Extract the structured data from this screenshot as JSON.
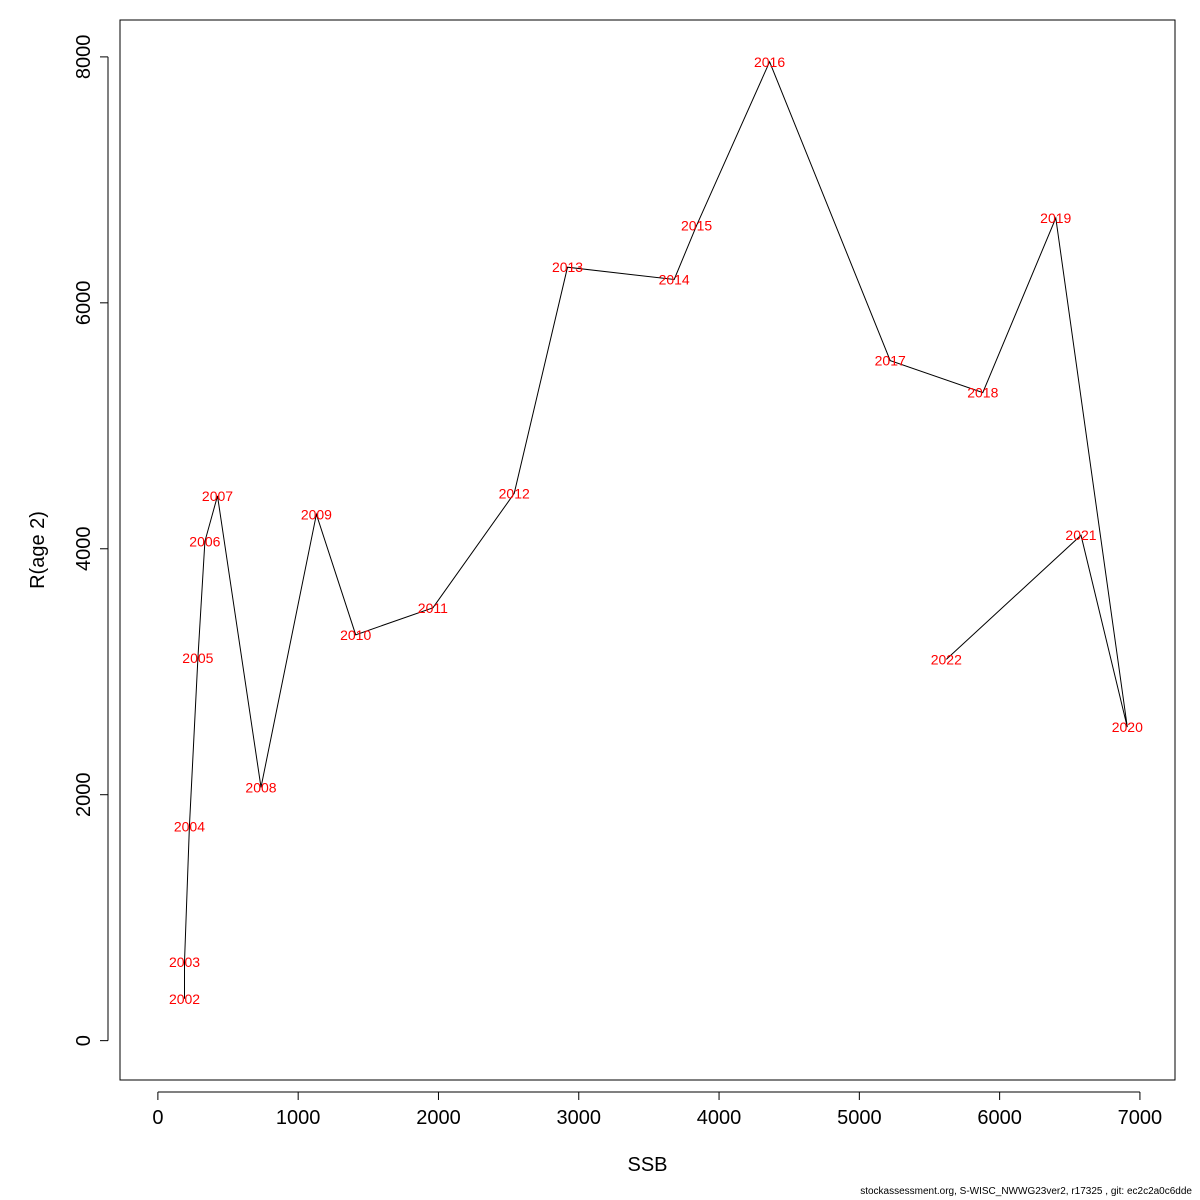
{
  "chart_data": {
    "type": "line",
    "title": "",
    "xlabel": "SSB",
    "ylabel": "R(age 2)",
    "xlim": [
      -270,
      7250
    ],
    "ylim": [
      -320,
      8300
    ],
    "xticks": [
      0,
      1000,
      2000,
      3000,
      4000,
      5000,
      6000,
      7000
    ],
    "yticks": [
      0,
      2000,
      4000,
      6000,
      8000
    ],
    "grid": false,
    "legend": "none",
    "line_color": "#000000",
    "label_color": "#ff0000",
    "series": [
      {
        "points": [
          {
            "label": "2002",
            "x": 190,
            "y": 340
          },
          {
            "label": "2003",
            "x": 190,
            "y": 640
          },
          {
            "label": "2004",
            "x": 225,
            "y": 1740
          },
          {
            "label": "2005",
            "x": 285,
            "y": 3110
          },
          {
            "label": "2006",
            "x": 335,
            "y": 4060
          },
          {
            "label": "2007",
            "x": 425,
            "y": 4430
          },
          {
            "label": "2008",
            "x": 735,
            "y": 2060
          },
          {
            "label": "2009",
            "x": 1130,
            "y": 4280
          },
          {
            "label": "2010",
            "x": 1410,
            "y": 3300
          },
          {
            "label": "2011",
            "x": 1960,
            "y": 3520
          },
          {
            "label": "2012",
            "x": 2540,
            "y": 4450
          },
          {
            "label": "2013",
            "x": 2920,
            "y": 6290
          },
          {
            "label": "2014",
            "x": 3680,
            "y": 6190
          },
          {
            "label": "2015",
            "x": 3840,
            "y": 6630
          },
          {
            "label": "2016",
            "x": 4360,
            "y": 7960
          },
          {
            "label": "2017",
            "x": 5220,
            "y": 5530
          },
          {
            "label": "2018",
            "x": 5880,
            "y": 5270
          },
          {
            "label": "2019",
            "x": 6400,
            "y": 6690
          },
          {
            "label": "2020",
            "x": 6910,
            "y": 2550
          },
          {
            "label": "2021",
            "x": 6580,
            "y": 4110
          },
          {
            "label": "2022",
            "x": 5620,
            "y": 3100
          }
        ]
      }
    ]
  },
  "footer": {
    "text": "stockassessment.org, S-WISC_NWWG23ver2, r17325 , git: ec2c2a0c6dde"
  }
}
